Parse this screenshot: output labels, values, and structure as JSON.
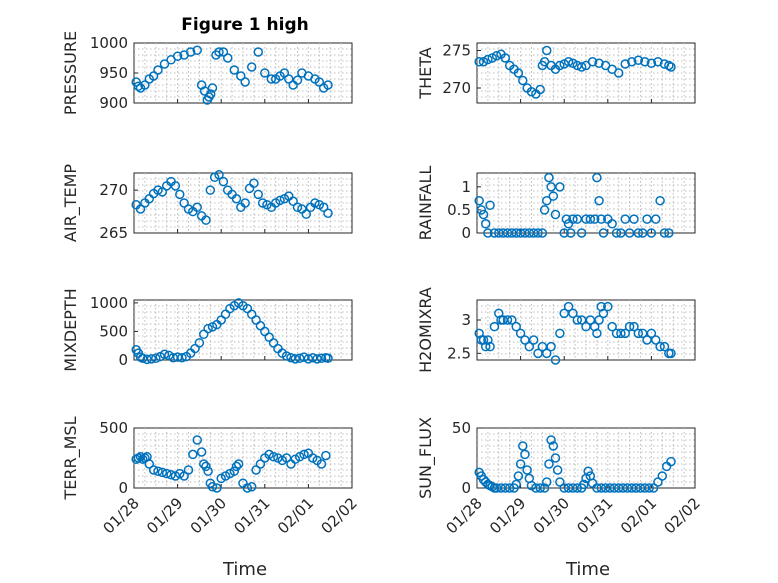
{
  "figure": {
    "title": "Figure 1 high",
    "xlabel": "Time"
  },
  "chart_data": [
    {
      "type": "scatter",
      "ylabel": "PRESSURE",
      "ylim": [
        900,
        1000
      ],
      "yticks": [
        "900",
        "950",
        "1000"
      ],
      "xticks": [
        "01/28",
        "01/29",
        "01/30",
        "01/31",
        "02/01",
        "02/02"
      ],
      "xlim": [
        0,
        5
      ],
      "marker": "circle",
      "color": "#0072bd",
      "grid": true,
      "x": [
        0.05,
        0.1,
        0.15,
        0.25,
        0.35,
        0.45,
        0.55,
        0.7,
        0.85,
        1.0,
        1.15,
        1.3,
        1.45,
        1.55,
        1.62,
        1.68,
        1.72,
        1.76,
        1.8,
        1.88,
        1.95,
        2.05,
        2.15,
        2.3,
        2.45,
        2.55,
        2.7,
        2.85,
        3.0,
        3.15,
        3.25,
        3.35,
        3.45,
        3.55,
        3.65,
        3.75,
        3.85,
        4.0,
        4.15,
        4.25,
        4.35,
        4.45
      ],
      "y": [
        935,
        928,
        925,
        930,
        940,
        945,
        955,
        965,
        972,
        978,
        980,
        985,
        988,
        930,
        920,
        905,
        910,
        915,
        925,
        980,
        985,
        985,
        975,
        955,
        945,
        935,
        960,
        985,
        950,
        940,
        940,
        945,
        950,
        940,
        930,
        938,
        950,
        945,
        940,
        935,
        925,
        930
      ]
    },
    {
      "type": "scatter",
      "ylabel": "THETA",
      "ylim": [
        268,
        276
      ],
      "yticks": [
        "270",
        "275"
      ],
      "xticks": [
        "01/28",
        "01/29",
        "01/30",
        "01/31",
        "02/01",
        "02/02"
      ],
      "xlim": [
        0,
        5
      ],
      "marker": "circle",
      "color": "#0072bd",
      "grid": true,
      "x": [
        0.05,
        0.15,
        0.25,
        0.35,
        0.45,
        0.55,
        0.65,
        0.75,
        0.85,
        0.95,
        1.05,
        1.15,
        1.25,
        1.35,
        1.45,
        1.5,
        1.55,
        1.6,
        1.7,
        1.8,
        1.9,
        2.0,
        2.1,
        2.2,
        2.3,
        2.4,
        2.5,
        2.65,
        2.8,
        2.95,
        3.1,
        3.25,
        3.4,
        3.55,
        3.7,
        3.85,
        4.0,
        4.15,
        4.3,
        4.4,
        4.45
      ],
      "y": [
        273.5,
        273.5,
        273.8,
        274,
        274.3,
        274.5,
        274,
        273,
        272.5,
        272,
        271,
        270,
        269.5,
        269.2,
        269.8,
        273,
        273.5,
        275,
        273,
        272.5,
        273,
        273.2,
        273.5,
        273.3,
        273,
        272.8,
        273,
        273.5,
        273.3,
        273,
        272.5,
        272,
        273.2,
        273.5,
        273.7,
        273.5,
        273.3,
        273.5,
        273.2,
        273,
        272.8
      ]
    },
    {
      "type": "scatter",
      "ylabel": "AIR_TEMP",
      "ylim": [
        265,
        272
      ],
      "yticks": [
        "265",
        "270"
      ],
      "xticks": [
        "01/28",
        "01/29",
        "01/30",
        "01/31",
        "02/01",
        "02/02"
      ],
      "xlim": [
        0,
        5
      ],
      "marker": "circle",
      "color": "#0072bd",
      "grid": true,
      "x": [
        0.05,
        0.15,
        0.25,
        0.35,
        0.45,
        0.55,
        0.65,
        0.75,
        0.85,
        0.95,
        1.05,
        1.15,
        1.25,
        1.35,
        1.45,
        1.55,
        1.65,
        1.75,
        1.85,
        1.95,
        2.05,
        2.15,
        2.25,
        2.35,
        2.45,
        2.55,
        2.65,
        2.75,
        2.85,
        2.95,
        3.05,
        3.15,
        3.25,
        3.35,
        3.45,
        3.55,
        3.65,
        3.75,
        3.85,
        3.95,
        4.05,
        4.15,
        4.25,
        4.35,
        4.45
      ],
      "y": [
        268.3,
        267.8,
        268.5,
        269,
        269.6,
        270,
        269.8,
        270.5,
        271,
        270.5,
        269.5,
        268.5,
        267.8,
        267.5,
        268,
        267,
        266.5,
        270,
        271.5,
        271.8,
        271,
        270,
        269.5,
        269,
        268,
        268.5,
        270.2,
        270.8,
        269.5,
        268.5,
        268.3,
        268,
        268.5,
        268.8,
        269,
        269.3,
        268.7,
        268,
        267.8,
        267.2,
        268,
        268.5,
        268.3,
        268,
        267.3
      ]
    },
    {
      "type": "scatter",
      "ylabel": "RAINFALL",
      "ylim": [
        0,
        1.3
      ],
      "yticks": [
        "0",
        "0.5",
        "1"
      ],
      "xticks": [
        "01/28",
        "01/29",
        "01/30",
        "01/31",
        "02/01",
        "02/02"
      ],
      "xlim": [
        0,
        5
      ],
      "marker": "circle",
      "color": "#0072bd",
      "grid": true,
      "x": [
        0.05,
        0.1,
        0.15,
        0.2,
        0.25,
        0.3,
        0.4,
        0.5,
        0.6,
        0.7,
        0.8,
        0.9,
        1.0,
        1.1,
        1.2,
        1.3,
        1.4,
        1.5,
        1.55,
        1.6,
        1.65,
        1.7,
        1.75,
        1.8,
        1.9,
        2.0,
        2.05,
        2.1,
        2.15,
        2.2,
        2.3,
        2.4,
        2.5,
        2.6,
        2.7,
        2.75,
        2.8,
        2.85,
        2.9,
        3.0,
        3.1,
        3.2,
        3.3,
        3.4,
        3.5,
        3.6,
        3.7,
        3.8,
        3.9,
        4.0,
        4.1,
        4.2,
        4.3,
        4.4
      ],
      "y": [
        0.7,
        0.5,
        0.4,
        0.2,
        0,
        0.6,
        0,
        0,
        0,
        0,
        0,
        0,
        0,
        0,
        0,
        0,
        0,
        0,
        0.5,
        0.7,
        1.2,
        1,
        0.8,
        0.4,
        1.0,
        0,
        0.3,
        0.2,
        0,
        0.3,
        0.3,
        0,
        0.3,
        0.3,
        0.3,
        1.2,
        0.7,
        0.3,
        0,
        0.3,
        0.2,
        0,
        0,
        0.3,
        0,
        0.3,
        0,
        0,
        0.3,
        0,
        0.3,
        0.7,
        0,
        0
      ]
    },
    {
      "type": "scatter",
      "ylabel": "MIXDEPTH",
      "ylim": [
        0,
        1050
      ],
      "yticks": [
        "0",
        "500",
        "1000"
      ],
      "xticks": [
        "01/28",
        "01/29",
        "01/30",
        "01/31",
        "02/01",
        "02/02"
      ],
      "xlim": [
        0,
        5
      ],
      "marker": "circle",
      "color": "#0072bd",
      "grid": true,
      "x": [
        0.05,
        0.1,
        0.15,
        0.2,
        0.3,
        0.4,
        0.5,
        0.6,
        0.7,
        0.8,
        0.9,
        1.0,
        1.1,
        1.2,
        1.3,
        1.4,
        1.5,
        1.6,
        1.7,
        1.8,
        1.9,
        2.0,
        2.1,
        2.2,
        2.3,
        2.4,
        2.5,
        2.6,
        2.7,
        2.8,
        2.9,
        3.0,
        3.1,
        3.2,
        3.3,
        3.4,
        3.5,
        3.6,
        3.7,
        3.8,
        3.9,
        4.0,
        4.1,
        4.2,
        4.3,
        4.4,
        4.45
      ],
      "y": [
        180,
        120,
        50,
        30,
        10,
        20,
        30,
        60,
        100,
        80,
        40,
        50,
        40,
        60,
        120,
        200,
        300,
        450,
        550,
        580,
        620,
        700,
        800,
        900,
        950,
        1000,
        950,
        900,
        800,
        700,
        600,
        500,
        400,
        300,
        200,
        120,
        70,
        40,
        20,
        30,
        50,
        20,
        40,
        20,
        30,
        40,
        30
      ]
    },
    {
      "type": "scatter",
      "ylabel": "H2OMIXRA",
      "ylim": [
        2.4,
        3.3
      ],
      "yticks": [
        "2.5",
        "3"
      ],
      "xticks": [
        "01/28",
        "01/29",
        "01/30",
        "01/31",
        "02/01",
        "02/02"
      ],
      "xlim": [
        0,
        5
      ],
      "marker": "circle",
      "color": "#0072bd",
      "grid": true,
      "x": [
        0.05,
        0.1,
        0.15,
        0.2,
        0.25,
        0.3,
        0.4,
        0.5,
        0.55,
        0.6,
        0.7,
        0.8,
        0.9,
        1.0,
        1.1,
        1.2,
        1.3,
        1.4,
        1.5,
        1.6,
        1.7,
        1.8,
        1.9,
        2.0,
        2.1,
        2.2,
        2.3,
        2.4,
        2.5,
        2.6,
        2.7,
        2.75,
        2.8,
        2.85,
        2.9,
        3.0,
        3.1,
        3.2,
        3.3,
        3.4,
        3.5,
        3.6,
        3.7,
        3.8,
        3.9,
        4.0,
        4.1,
        4.2,
        4.3,
        4.4,
        4.45
      ],
      "y": [
        2.8,
        2.7,
        2.7,
        2.6,
        2.7,
        2.6,
        2.9,
        3.1,
        3.0,
        3.0,
        3.0,
        3.0,
        2.9,
        2.8,
        2.7,
        2.6,
        2.7,
        2.5,
        2.6,
        2.5,
        2.6,
        2.4,
        2.8,
        3.1,
        3.2,
        3.1,
        3.0,
        3.0,
        2.9,
        3.0,
        2.9,
        2.8,
        3.0,
        3.2,
        3.1,
        3.2,
        2.9,
        2.8,
        2.8,
        2.8,
        2.9,
        2.9,
        2.8,
        2.8,
        2.7,
        2.8,
        2.7,
        2.6,
        2.6,
        2.5,
        2.5
      ]
    },
    {
      "type": "scatter",
      "ylabel": "TERR_MSL",
      "ylim": [
        0,
        500
      ],
      "yticks": [
        "0",
        "500"
      ],
      "xticks": [
        "01/28",
        "01/29",
        "01/30",
        "01/31",
        "02/01",
        "02/02"
      ],
      "xlim": [
        0,
        5
      ],
      "marker": "circle",
      "color": "#0072bd",
      "grid": true,
      "x": [
        0.05,
        0.1,
        0.15,
        0.2,
        0.25,
        0.3,
        0.35,
        0.45,
        0.55,
        0.65,
        0.75,
        0.85,
        0.95,
        1.05,
        1.15,
        1.25,
        1.35,
        1.45,
        1.55,
        1.6,
        1.65,
        1.7,
        1.75,
        1.8,
        1.9,
        2.0,
        2.1,
        2.2,
        2.3,
        2.35,
        2.4,
        2.5,
        2.6,
        2.7,
        2.8,
        2.9,
        3.0,
        3.1,
        3.2,
        3.3,
        3.4,
        3.5,
        3.6,
        3.7,
        3.8,
        3.9,
        4.0,
        4.1,
        4.2,
        4.3,
        4.4
      ],
      "y": [
        240,
        250,
        260,
        240,
        250,
        260,
        200,
        150,
        140,
        130,
        120,
        110,
        100,
        120,
        100,
        150,
        280,
        400,
        300,
        200,
        180,
        140,
        40,
        10,
        0,
        80,
        100,
        120,
        140,
        180,
        200,
        40,
        0,
        10,
        150,
        200,
        250,
        280,
        260,
        250,
        230,
        250,
        200,
        240,
        260,
        280,
        290,
        250,
        230,
        200,
        270
      ]
    },
    {
      "type": "scatter",
      "ylabel": "SUN_FLUX",
      "ylim": [
        0,
        50
      ],
      "yticks": [
        "0",
        "50"
      ],
      "xticks": [
        "01/28",
        "01/29",
        "01/30",
        "01/31",
        "02/01",
        "02/02"
      ],
      "xlim": [
        0,
        5
      ],
      "marker": "circle",
      "color": "#0072bd",
      "grid": true,
      "x": [
        0.05,
        0.1,
        0.15,
        0.2,
        0.25,
        0.3,
        0.35,
        0.4,
        0.45,
        0.55,
        0.65,
        0.75,
        0.85,
        0.9,
        0.95,
        1.0,
        1.05,
        1.1,
        1.15,
        1.2,
        1.25,
        1.35,
        1.45,
        1.55,
        1.6,
        1.65,
        1.7,
        1.75,
        1.8,
        1.85,
        1.9,
        2.0,
        2.1,
        2.2,
        2.3,
        2.4,
        2.45,
        2.5,
        2.55,
        2.6,
        2.65,
        2.75,
        2.85,
        2.95,
        3.05,
        3.15,
        3.25,
        3.35,
        3.45,
        3.55,
        3.65,
        3.75,
        3.85,
        3.95,
        4.05,
        4.15,
        4.25,
        4.35,
        4.45
      ],
      "y": [
        13,
        10,
        7,
        5,
        3,
        2,
        1,
        0,
        0,
        0,
        0,
        0,
        0,
        3,
        10,
        20,
        35,
        28,
        15,
        8,
        2,
        0,
        0,
        0,
        5,
        20,
        40,
        35,
        25,
        15,
        5,
        0,
        0,
        0,
        0,
        0,
        3,
        8,
        14,
        10,
        4,
        0,
        0,
        0,
        0,
        0,
        0,
        0,
        0,
        0,
        0,
        0,
        0,
        0,
        0,
        5,
        10,
        18,
        22
      ]
    }
  ]
}
